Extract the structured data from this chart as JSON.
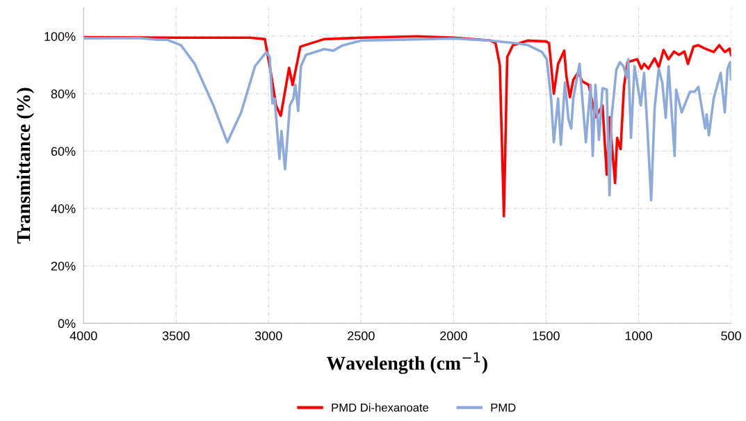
{
  "chart_data": {
    "type": "line",
    "xlabel": "Wavelength (cm$^{−1}$)",
    "ylabel": "Transmittance (%)",
    "xlim": [
      4000,
      500
    ],
    "xticks": [
      4000,
      3500,
      3000,
      2500,
      2000,
      1500,
      1000,
      500
    ],
    "ylim": [
      0,
      110
    ],
    "yticks": [
      {
        "value": 0,
        "label": "0%"
      },
      {
        "value": 20,
        "label": "20%"
      },
      {
        "value": 40,
        "label": "40%"
      },
      {
        "value": 60,
        "label": "60%"
      },
      {
        "value": 80,
        "label": "80%"
      },
      {
        "value": 100,
        "label": "100%"
      }
    ],
    "grid": true,
    "legend": "bottom",
    "marker": "none",
    "line_style": "solid",
    "series": [
      {
        "name": "PMD Di-hexanoate",
        "color": "#ff0000",
        "x": [
          4000,
          3500,
          3100,
          3020,
          2986,
          2960,
          2934,
          2889,
          2870,
          2828,
          2700,
          2500,
          2200,
          2000,
          1800,
          1773,
          1750,
          1728,
          1710,
          1679,
          1600,
          1500,
          1484,
          1458,
          1435,
          1402,
          1390,
          1371,
          1353,
          1326,
          1304,
          1270,
          1233,
          1195,
          1172,
          1157,
          1127,
          1116,
          1097,
          1079,
          1060,
          1007,
          985,
          970,
          947,
          913,
          891,
          865,
          838,
          808,
          782,
          752,
          733,
          703,
          677,
          647,
          594,
          564,
          534,
          508,
          500
        ],
        "values": [
          99.7,
          99.5,
          99.5,
          99,
          86.7,
          76,
          72.3,
          89,
          83,
          96.4,
          99,
          99.5,
          100,
          99.5,
          98.5,
          97.6,
          90,
          37.3,
          92.8,
          96.9,
          98.5,
          98.2,
          97.6,
          80,
          90.4,
          95,
          86,
          78.8,
          84.8,
          87.5,
          84.3,
          83.1,
          71.8,
          75.9,
          51.8,
          71.8,
          48.9,
          64.6,
          60.7,
          82.4,
          91,
          92,
          88.7,
          90.4,
          88.7,
          92.3,
          89.2,
          95.2,
          92,
          94.7,
          93.5,
          94.7,
          90.4,
          96.4,
          96.9,
          95.9,
          94.5,
          96.9,
          94.5,
          95.7,
          93.5
        ]
      },
      {
        "name": "PMD",
        "color": "#8eaadb",
        "x": [
          4000,
          3700,
          3600,
          3549,
          3474,
          3399,
          3298,
          3223,
          3148,
          3073,
          3012,
          2994,
          2979,
          2967,
          2941,
          2930,
          2911,
          2885,
          2866,
          2855,
          2840,
          2825,
          2798,
          2700,
          2650,
          2600,
          2500,
          2000,
          1800,
          1653,
          1597,
          1522,
          1496,
          1473,
          1458,
          1435,
          1420,
          1398,
          1379,
          1364,
          1353,
          1319,
          1285,
          1259,
          1248,
          1233,
          1214,
          1195,
          1172,
          1157,
          1146,
          1120,
          1101,
          1082,
          1063,
          1056,
          1041,
          1022,
          988,
          970,
          951,
          932,
          913,
          891,
          872,
          853,
          838,
          805,
          797,
          767,
          722,
          696,
          677,
          640,
          632,
          620,
          594,
          556,
          534,
          519,
          505,
          500
        ],
        "values": [
          99.3,
          99.4,
          98.8,
          98.8,
          96.9,
          90.4,
          75.9,
          63.1,
          73.5,
          89.6,
          94.5,
          92.8,
          76.6,
          78.3,
          57.3,
          67,
          53.7,
          75.9,
          78.3,
          83.1,
          74,
          89.6,
          93.5,
          95.5,
          95,
          96.8,
          98.5,
          99.2,
          98.5,
          97.5,
          96.9,
          94.5,
          92,
          78.3,
          63.1,
          78.3,
          62.2,
          83.9,
          71.1,
          67.9,
          78.3,
          90.4,
          63.1,
          83.1,
          58.3,
          83.1,
          63.9,
          81.9,
          81.4,
          44.6,
          71.8,
          88.4,
          91,
          89.6,
          85.5,
          92,
          64.6,
          89.6,
          75.9,
          87.2,
          66.3,
          42.9,
          75.2,
          88.7,
          83.9,
          71.6,
          89.6,
          58.3,
          81.4,
          73.5,
          80.7,
          80.7,
          82.4,
          67.9,
          72.8,
          65.5,
          78.3,
          87.2,
          73.5,
          88.7,
          91,
          85
        ]
      }
    ]
  }
}
